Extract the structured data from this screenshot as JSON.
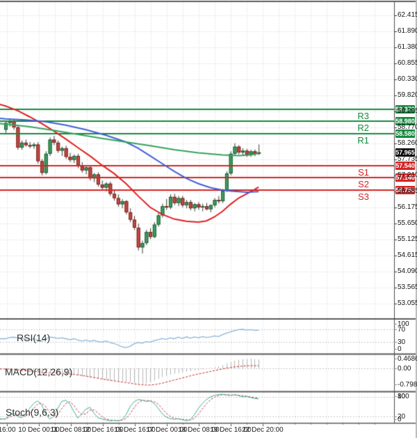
{
  "colors": {
    "background": "#ffffff",
    "grid": "#d7d7d7",
    "separator": "#5b5b5b",
    "axis_line": "#4a4a4a",
    "tick_text": "#141414",
    "bull_body": "#3f9d5f",
    "bull_border": "#1e5c36",
    "bear_body": "#bf4b45",
    "bear_border": "#7c221e",
    "wick": "#3c3c3c",
    "ma_fast": "#e01f1f",
    "ma_mid": "#3f5fd6",
    "ma_slow": "#36a25e",
    "resistance": "#168a3e",
    "support": "#d42525",
    "current_price_badge": "#0b0b0b",
    "rsi_line": "#8ab6d8",
    "macd_histogram": "#b5b5b5",
    "macd_signal": "#c92a2a",
    "stoch_k": "#3fae9e",
    "stoch_d": "#cb3b4b"
  },
  "price_axis": {
    "ticks": [
      "62.415",
      "61.890",
      "61.380",
      "60.855",
      "60.330",
      "59.820",
      "59.295",
      "58.770",
      "58.260",
      "57.735",
      "57.210",
      "56.685",
      "56.175",
      "55.650",
      "55.125",
      "54.615",
      "54.090",
      "53.565",
      "53.055"
    ],
    "tick_values": [
      62.415,
      61.89,
      61.38,
      60.855,
      60.33,
      59.82,
      59.295,
      58.77,
      58.26,
      57.735,
      57.21,
      56.685,
      56.175,
      55.65,
      55.125,
      54.615,
      54.09,
      53.565,
      53.055
    ]
  },
  "levels": {
    "resistance": [
      {
        "label": "R3",
        "price": 59.37,
        "price_label": "59.370"
      },
      {
        "label": "R2",
        "price": 58.98,
        "price_label": "58.980"
      },
      {
        "label": "R1",
        "price": 58.58,
        "price_label": "58.580"
      }
    ],
    "support": [
      {
        "label": "S1",
        "price": 57.54,
        "price_label": "57.540"
      },
      {
        "label": "S2",
        "price": 57.14,
        "price_label": "57.140"
      },
      {
        "label": "S3",
        "price": 56.75,
        "price_label": "56.750"
      }
    ]
  },
  "current_price": {
    "value": 57.965,
    "label": "57.965"
  },
  "x_axis": {
    "labels": [
      "16:00",
      "10 Dec 00:00",
      "11 Dec 08:00",
      "12 Dec 16:00",
      "15 Dec 16:00",
      "17 Dec 00:00",
      "18 Dec 08:00",
      "19 Dec 16:00",
      "22 Dec 20:00"
    ]
  },
  "indicators": {
    "rsi": {
      "name": "RSI(14)",
      "scale_labels": [
        "100",
        "70",
        "30",
        "0"
      ],
      "scale_values": [
        100,
        70,
        30,
        0
      ],
      "guides": [
        70,
        30
      ]
    },
    "macd": {
      "name": "MACD(12,26,9)",
      "scale_labels": [
        "0.4686",
        "0.00",
        "-0.7983"
      ],
      "scale_values": [
        0.4686,
        0,
        -0.7983
      ],
      "guides": [
        0
      ]
    },
    "stoch": {
      "name": "Stoch(9,6,3)",
      "scale_labels": [
        "100",
        "80",
        "20",
        "0"
      ],
      "scale_values": [
        100,
        80,
        20,
        0
      ],
      "guides": [
        80,
        20
      ]
    }
  },
  "chart_data": {
    "type": "candlestick",
    "timeframe_hint": "4H",
    "price_ylim": [
      52.95,
      62.62
    ],
    "grid": true,
    "candles_ohlc": [
      [
        58.7,
        59.0,
        58.6,
        58.92
      ],
      [
        58.92,
        59.06,
        58.8,
        59.0
      ],
      [
        59.0,
        59.04,
        58.7,
        58.78
      ],
      [
        58.78,
        58.82,
        58.05,
        58.12
      ],
      [
        58.12,
        58.35,
        58.05,
        58.28
      ],
      [
        58.28,
        58.38,
        58.15,
        58.2
      ],
      [
        58.2,
        58.3,
        58.1,
        58.17
      ],
      [
        58.17,
        58.28,
        58.08,
        58.22
      ],
      [
        58.22,
        58.3,
        57.6,
        57.68
      ],
      [
        57.68,
        57.75,
        57.22,
        57.3
      ],
      [
        57.3,
        58.0,
        57.25,
        57.92
      ],
      [
        57.92,
        58.45,
        57.85,
        58.38
      ],
      [
        58.38,
        58.5,
        58.2,
        58.28
      ],
      [
        58.28,
        58.35,
        57.95,
        58.02
      ],
      [
        58.02,
        58.15,
        57.85,
        58.1
      ],
      [
        58.1,
        58.18,
        57.75,
        57.82
      ],
      [
        57.82,
        57.95,
        57.65,
        57.72
      ],
      [
        57.72,
        57.9,
        57.62,
        57.85
      ],
      [
        57.85,
        57.92,
        57.45,
        57.52
      ],
      [
        57.52,
        57.65,
        57.3,
        57.38
      ],
      [
        57.38,
        57.55,
        57.25,
        57.48
      ],
      [
        57.48,
        57.55,
        57.05,
        57.12
      ],
      [
        57.12,
        57.3,
        57.0,
        57.25
      ],
      [
        57.25,
        57.32,
        56.85,
        56.92
      ],
      [
        56.92,
        57.05,
        56.75,
        56.82
      ],
      [
        56.82,
        57.0,
        56.7,
        56.95
      ],
      [
        56.95,
        57.02,
        56.55,
        56.62
      ],
      [
        56.62,
        56.75,
        56.4,
        56.48
      ],
      [
        56.48,
        56.6,
        56.2,
        56.28
      ],
      [
        56.28,
        56.45,
        56.15,
        56.38
      ],
      [
        56.38,
        56.42,
        55.95,
        56.02
      ],
      [
        56.02,
        56.15,
        55.7,
        55.78
      ],
      [
        55.78,
        55.9,
        55.45,
        55.52
      ],
      [
        55.52,
        55.65,
        54.78,
        54.88
      ],
      [
        54.88,
        55.1,
        54.68,
        55.02
      ],
      [
        55.02,
        55.45,
        54.95,
        55.38
      ],
      [
        55.38,
        55.5,
        55.15,
        55.22
      ],
      [
        55.22,
        55.7,
        55.18,
        55.62
      ],
      [
        55.62,
        56.0,
        55.55,
        55.92
      ],
      [
        55.92,
        56.3,
        55.85,
        56.22
      ],
      [
        56.22,
        56.45,
        56.1,
        56.18
      ],
      [
        56.18,
        56.6,
        56.12,
        56.52
      ],
      [
        56.52,
        56.62,
        56.25,
        56.32
      ],
      [
        56.32,
        56.55,
        56.22,
        56.48
      ],
      [
        56.48,
        56.55,
        56.18,
        56.25
      ],
      [
        56.25,
        56.42,
        56.15,
        56.35
      ],
      [
        56.35,
        56.42,
        56.08,
        56.15
      ],
      [
        56.15,
        56.32,
        56.05,
        56.28
      ],
      [
        56.28,
        56.35,
        56.1,
        56.18
      ],
      [
        56.18,
        56.3,
        56.05,
        56.22
      ],
      [
        56.22,
        56.32,
        56.08,
        56.12
      ],
      [
        56.12,
        56.28,
        56.02,
        56.25
      ],
      [
        56.25,
        56.48,
        56.18,
        56.42
      ],
      [
        56.42,
        56.55,
        56.3,
        56.38
      ],
      [
        56.38,
        56.78,
        56.32,
        56.72
      ],
      [
        56.72,
        57.35,
        56.68,
        57.28
      ],
      [
        57.28,
        58.0,
        57.22,
        57.92
      ],
      [
        57.92,
        58.26,
        57.88,
        58.15
      ],
      [
        58.15,
        58.2,
        57.9,
        57.96
      ],
      [
        57.96,
        58.1,
        57.86,
        58.02
      ],
      [
        58.02,
        58.08,
        57.82,
        57.9
      ],
      [
        57.9,
        58.05,
        57.82,
        58.0
      ],
      [
        58.0,
        58.06,
        57.84,
        57.92
      ],
      [
        57.92,
        58.22,
        57.88,
        57.965
      ]
    ],
    "moving_averages": [
      {
        "name": "ma-fast-red",
        "color_key": "ma_fast",
        "points": [
          [
            -1.4,
            59.52
          ],
          [
            0,
            59.47
          ],
          [
            3,
            59.32
          ],
          [
            6,
            59.12
          ],
          [
            9,
            58.9
          ],
          [
            12,
            58.66
          ],
          [
            15,
            58.4
          ],
          [
            18,
            58.12
          ],
          [
            21,
            57.85
          ],
          [
            24,
            57.55
          ],
          [
            27,
            57.28
          ],
          [
            30,
            56.95
          ],
          [
            33,
            56.55
          ],
          [
            36,
            56.18
          ],
          [
            39,
            55.95
          ],
          [
            42,
            55.8
          ],
          [
            45,
            55.73
          ],
          [
            48,
            55.7
          ],
          [
            50,
            55.74
          ],
          [
            52,
            55.87
          ],
          [
            54,
            56.05
          ],
          [
            56,
            56.28
          ],
          [
            58,
            56.48
          ],
          [
            60,
            56.62
          ],
          [
            62,
            56.76
          ],
          [
            63,
            56.84
          ]
        ]
      },
      {
        "name": "ma-medium-blue",
        "color_key": "ma_mid",
        "points": [
          [
            -1.4,
            59.07
          ],
          [
            0,
            59.05
          ],
          [
            5,
            59.02
          ],
          [
            10,
            58.96
          ],
          [
            15,
            58.85
          ],
          [
            20,
            58.7
          ],
          [
            25,
            58.52
          ],
          [
            30,
            58.3
          ],
          [
            33,
            58.1
          ],
          [
            36,
            57.85
          ],
          [
            39,
            57.6
          ],
          [
            42,
            57.35
          ],
          [
            45,
            57.12
          ],
          [
            48,
            56.95
          ],
          [
            51,
            56.82
          ],
          [
            54,
            56.74
          ],
          [
            57,
            56.7
          ],
          [
            60,
            56.67
          ],
          [
            63,
            56.69
          ]
        ]
      },
      {
        "name": "ma-slow-green",
        "color_key": "ma_slow",
        "points": [
          [
            -1.4,
            58.9
          ],
          [
            0,
            58.88
          ],
          [
            6,
            58.8
          ],
          [
            12,
            58.68
          ],
          [
            18,
            58.55
          ],
          [
            24,
            58.42
          ],
          [
            30,
            58.3
          ],
          [
            36,
            58.18
          ],
          [
            42,
            58.05
          ],
          [
            48,
            57.95
          ],
          [
            54,
            57.88
          ],
          [
            58,
            57.86
          ],
          [
            61,
            57.88
          ],
          [
            63,
            57.93
          ]
        ]
      }
    ],
    "rsi_values": [
      40,
      44,
      45,
      43,
      41,
      39,
      37,
      40,
      35,
      32,
      40,
      45,
      44,
      41,
      43,
      40,
      37,
      40,
      36,
      33,
      36,
      32,
      35,
      31,
      29,
      33,
      28,
      25,
      20,
      14,
      12,
      16,
      24,
      28,
      26,
      31,
      29,
      34,
      37,
      41,
      38,
      43,
      40,
      45,
      41,
      46,
      42,
      46,
      43,
      47,
      44,
      46,
      49,
      47,
      53,
      58,
      62,
      66,
      69,
      70,
      68,
      69,
      67,
      67
    ],
    "macd_histogram": [
      -0.05,
      -0.07,
      -0.1,
      -0.14,
      -0.16,
      -0.17,
      -0.17,
      -0.18,
      -0.22,
      -0.28,
      -0.26,
      -0.22,
      -0.2,
      -0.22,
      -0.24,
      -0.27,
      -0.3,
      -0.32,
      -0.35,
      -0.39,
      -0.42,
      -0.46,
      -0.48,
      -0.51,
      -0.54,
      -0.55,
      -0.58,
      -0.61,
      -0.63,
      -0.63,
      -0.65,
      -0.67,
      -0.7,
      -0.74,
      -0.76,
      -0.72,
      -0.66,
      -0.58,
      -0.5,
      -0.42,
      -0.36,
      -0.3,
      -0.26,
      -0.22,
      -0.19,
      -0.16,
      -0.13,
      -0.1,
      -0.07,
      -0.04,
      -0.02,
      0.02,
      0.06,
      0.1,
      0.16,
      0.24,
      0.31,
      0.37,
      0.41,
      0.44,
      0.45,
      0.4686,
      0.44,
      0.43
    ],
    "macd_signal": [
      -0.03,
      -0.04,
      -0.05,
      -0.07,
      -0.09,
      -0.11,
      -0.13,
      -0.14,
      -0.16,
      -0.18,
      -0.2,
      -0.21,
      -0.22,
      -0.23,
      -0.24,
      -0.25,
      -0.27,
      -0.29,
      -0.31,
      -0.34,
      -0.37,
      -0.4,
      -0.44,
      -0.47,
      -0.51,
      -0.54,
      -0.57,
      -0.6,
      -0.63,
      -0.66,
      -0.68,
      -0.71,
      -0.74,
      -0.77,
      -0.79,
      -0.7983,
      -0.8,
      -0.78,
      -0.75,
      -0.71,
      -0.66,
      -0.61,
      -0.56,
      -0.51,
      -0.46,
      -0.41,
      -0.36,
      -0.31,
      -0.27,
      -0.23,
      -0.19,
      -0.15,
      -0.11,
      -0.07,
      -0.03,
      0.01,
      0.04,
      0.07,
      0.09,
      0.11,
      0.12,
      0.13,
      0.13,
      0.13
    ],
    "stoch_k": [
      12,
      25,
      30,
      20,
      16,
      28,
      45,
      60,
      68,
      55,
      28,
      12,
      20,
      45,
      66,
      70,
      58,
      35,
      15,
      28,
      42,
      48,
      30,
      16,
      12,
      9,
      6,
      8,
      6,
      10,
      25,
      50,
      65,
      72,
      70,
      66,
      68,
      60,
      45,
      28,
      18,
      13,
      11,
      13,
      10,
      6,
      10,
      25,
      45,
      60,
      72,
      80,
      85,
      87,
      88,
      86,
      84,
      87,
      84,
      80,
      82,
      78,
      75,
      74
    ],
    "stoch_d": [
      12,
      19,
      22,
      25,
      22,
      21,
      30,
      44,
      58,
      61,
      50,
      32,
      20,
      26,
      44,
      60,
      65,
      54,
      36,
      26,
      28,
      39,
      40,
      31,
      19,
      12,
      9,
      8,
      7,
      8,
      14,
      28,
      47,
      62,
      69,
      69,
      68,
      65,
      58,
      44,
      30,
      20,
      14,
      12,
      11,
      10,
      9,
      14,
      27,
      43,
      59,
      71,
      79,
      84,
      87,
      87,
      86,
      86,
      85,
      84,
      82,
      80,
      78,
      76
    ]
  }
}
